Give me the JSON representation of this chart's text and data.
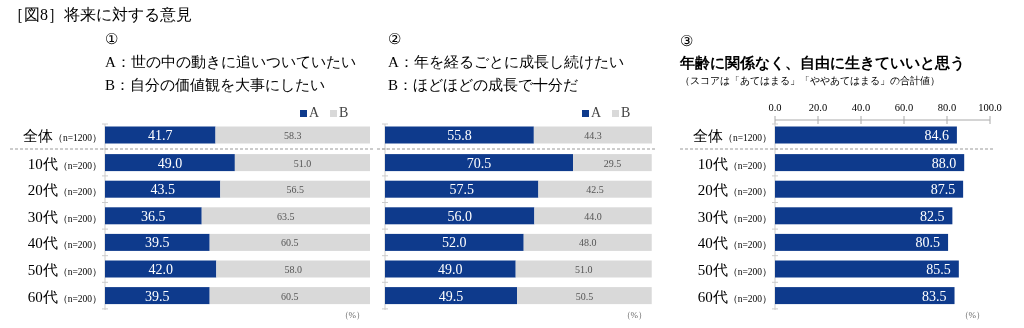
{
  "chart_data": [
    {
      "type": "bar",
      "orientation": "horizontal",
      "stacked": true,
      "title": "［図8］将来に対する意見",
      "subtitle": "①\nA：世の中の動きに追いついていたい\nB：自分の価値観を大事にしたい",
      "categories": [
        "全体（n=1200）",
        "10代（n=200）",
        "20代（n=200）",
        "30代（n=200）",
        "40代（n=200）",
        "50代（n=200）",
        "60代（n=200）"
      ],
      "series": [
        {
          "name": "A",
          "color": "#0e3a8c",
          "values": [
            41.7,
            49.0,
            43.5,
            36.5,
            39.5,
            42.0,
            39.5
          ],
          "value_labels": [
            "41.7",
            "49.0",
            "43.5",
            "36.5",
            "39.5",
            "42.0",
            "39.5"
          ]
        },
        {
          "name": "B",
          "color": "#d9d9d9",
          "values": [
            58.3,
            51.0,
            56.5,
            63.5,
            60.5,
            58.0,
            60.5
          ],
          "value_labels": [
            "58.3",
            "51.0",
            "56.5",
            "63.5",
            "60.5",
            "58.0",
            "60.5"
          ]
        }
      ],
      "legend": "top right",
      "tick_labels": "y",
      "annotations": [
        "（%）"
      ]
    },
    {
      "type": "bar",
      "orientation": "horizontal",
      "stacked": true,
      "subtitle": "②\nA：年を経るごとに成長し続けたい\nB：ほどほどの成長で十分だ",
      "categories": [
        null,
        null,
        null,
        null,
        null,
        null,
        null
      ],
      "series": [
        {
          "name": "A",
          "color": "#0e3a8c",
          "values": [
            55.8,
            70.5,
            57.5,
            56.0,
            52.0,
            49.0,
            49.5
          ],
          "value_labels": [
            "55.8",
            "70.5",
            "57.5",
            "56.0",
            "52.0",
            "49.0",
            "49.5"
          ]
        },
        {
          "name": "B",
          "color": "#d9d9d9",
          "values": [
            44.3,
            29.5,
            42.5,
            44.0,
            48.0,
            51.0,
            50.5
          ],
          "value_labels": [
            "44.3",
            "29.5",
            "42.5",
            "44.0",
            "48.0",
            "51.0",
            "50.5"
          ]
        }
      ],
      "legend": "top right",
      "annotations": [
        "（%）"
      ]
    },
    {
      "type": "bar",
      "orientation": "horizontal",
      "subtitle": "③\n年齢に関係なく、自由に生きていいと思う",
      "categories": [
        "全体（n=1200）",
        "10代（n=200）",
        "20代（n=200）",
        "30代（n=200）",
        "40代（n=200）",
        "50代（n=200）",
        "60代（n=200）"
      ],
      "series": [
        {
          "color": "#0e3a8c",
          "values": [
            84.6,
            88.0,
            87.5,
            82.5,
            80.5,
            85.5,
            83.5
          ],
          "value_labels": [
            "84.6",
            "88.0",
            "87.5",
            "82.5",
            "80.5",
            "85.5",
            "83.5"
          ]
        }
      ],
      "xlim": [
        0,
        100
      ],
      "xticks": [
        {
          "value": 0,
          "label": "0.0"
        },
        {
          "value": 20,
          "label": "20.0"
        },
        {
          "value": 40,
          "label": "40.0"
        },
        {
          "value": 60,
          "label": "60.0"
        },
        {
          "value": 80,
          "label": "80.0"
        },
        {
          "value": 100,
          "label": "100.0"
        }
      ],
      "annotations": [
        "（スコアは「あてはまる」「ややあてはまる」の合計値）",
        "（%）"
      ]
    }
  ]
}
